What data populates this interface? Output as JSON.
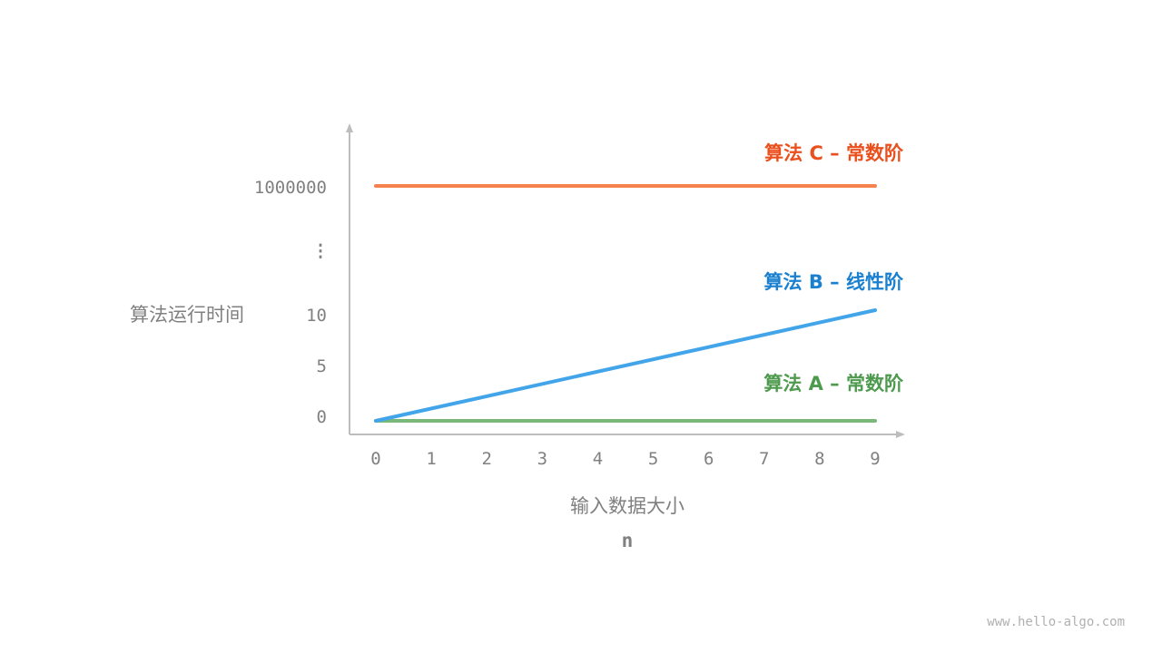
{
  "chart_data": {
    "type": "line",
    "xlabel": "输入数据大小",
    "xlabel_sub": "n",
    "ylabel": "算法运行时间",
    "x_ticks": [
      "0",
      "1",
      "2",
      "3",
      "4",
      "5",
      "6",
      "7",
      "8",
      "9"
    ],
    "y_ticks": [
      "0",
      "5",
      "10",
      "⋮",
      "1000000"
    ],
    "y_axis_broken": true,
    "grid": false,
    "series": [
      {
        "name": "算法 A – 常数阶",
        "x": [
          0,
          9
        ],
        "y": [
          0,
          0
        ],
        "color": "#7ab77a",
        "label_color": "#4e9a4e"
      },
      {
        "name": "算法 B – 线性阶",
        "x": [
          0,
          9
        ],
        "y": [
          0,
          10
        ],
        "color": "#42a5ea",
        "label_color": "#1a80cf"
      },
      {
        "name": "算法 C – 常数阶",
        "x": [
          0,
          9
        ],
        "y": [
          1000000,
          1000000
        ],
        "color": "#f5824f",
        "label_color": "#e9501e"
      }
    ]
  },
  "watermark": "www.hello-algo.com",
  "colors": {
    "axis": "#bdbdbd",
    "text": "#808080"
  }
}
